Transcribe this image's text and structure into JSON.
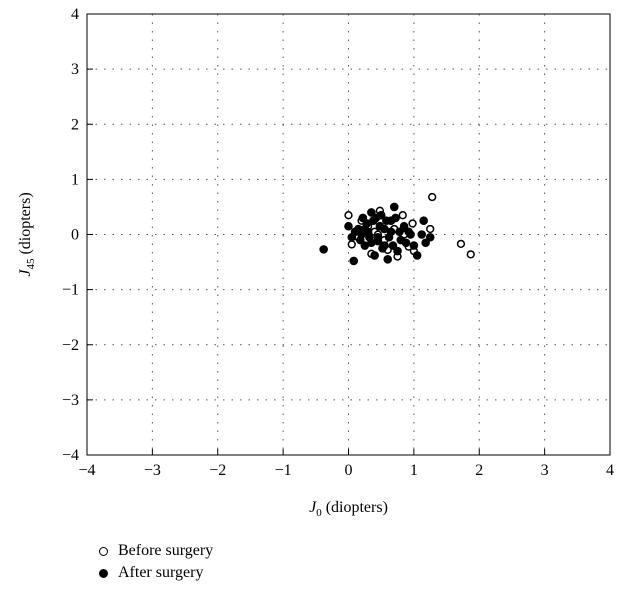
{
  "chart_data": {
    "type": "scatter",
    "title": "",
    "xlabel": {
      "main": "J",
      "sub": "0",
      "rest": " (diopters)"
    },
    "ylabel": {
      "main": "J",
      "sub": "45",
      "rest": " (diopters)"
    },
    "xlim": [
      -4,
      4
    ],
    "ylim": [
      -4,
      4
    ],
    "xticks": [
      "−4",
      "−3",
      "−2",
      "−1",
      "0",
      "1",
      "2",
      "3",
      "4"
    ],
    "yticks": [
      "−4",
      "−3",
      "−2",
      "−1",
      "0",
      "1",
      "2",
      "3",
      "4"
    ],
    "grid": true,
    "legend_position": "bottom-left",
    "series": [
      {
        "name": "Before surgery",
        "marker": "hollow-circle",
        "color": "#000000",
        "points": [
          [
            1.28,
            0.68
          ],
          [
            1.25,
            0.1
          ],
          [
            0.98,
            0.2
          ],
          [
            0.83,
            0.35
          ],
          [
            0.48,
            0.43
          ],
          [
            0.0,
            0.35
          ],
          [
            0.05,
            -0.18
          ],
          [
            0.15,
            -0.05
          ],
          [
            0.3,
            0.15
          ],
          [
            0.4,
            0.05
          ],
          [
            0.55,
            -0.1
          ],
          [
            0.6,
            -0.28
          ],
          [
            0.75,
            -0.4
          ],
          [
            0.92,
            -0.22
          ],
          [
            1.0,
            -0.3
          ],
          [
            0.35,
            -0.35
          ],
          [
            0.2,
            0.25
          ],
          [
            0.45,
            0.0
          ],
          [
            0.7,
            0.1
          ],
          [
            0.85,
            0.0
          ],
          [
            1.72,
            -0.17
          ],
          [
            1.87,
            -0.36
          ]
        ]
      },
      {
        "name": "After surgery",
        "marker": "filled-circle",
        "color": "#000000",
        "points": [
          [
            -0.38,
            -0.27
          ],
          [
            0.08,
            -0.48
          ],
          [
            0.0,
            0.15
          ],
          [
            0.05,
            -0.05
          ],
          [
            0.1,
            0.05
          ],
          [
            0.15,
            0.1
          ],
          [
            0.18,
            -0.1
          ],
          [
            0.2,
            0.0
          ],
          [
            0.22,
            0.3
          ],
          [
            0.25,
            -0.2
          ],
          [
            0.28,
            0.2
          ],
          [
            0.3,
            0.05
          ],
          [
            0.32,
            -0.05
          ],
          [
            0.35,
            0.4
          ],
          [
            0.38,
            0.25
          ],
          [
            0.4,
            -0.38
          ],
          [
            0.42,
            0.3
          ],
          [
            0.45,
            -0.12
          ],
          [
            0.48,
            0.15
          ],
          [
            0.5,
            0.35
          ],
          [
            0.52,
            -0.25
          ],
          [
            0.55,
            0.1
          ],
          [
            0.58,
            0.25
          ],
          [
            0.6,
            -0.45
          ],
          [
            0.62,
            -0.05
          ],
          [
            0.65,
            0.05
          ],
          [
            0.68,
            -0.2
          ],
          [
            0.7,
            0.5
          ],
          [
            0.72,
            0.3
          ],
          [
            0.75,
            -0.3
          ],
          [
            0.78,
            0.05
          ],
          [
            0.8,
            -0.1
          ],
          [
            0.85,
            0.15
          ],
          [
            0.88,
            -0.15
          ],
          [
            0.92,
            0.05
          ],
          [
            0.95,
            0.0
          ],
          [
            1.0,
            -0.2
          ],
          [
            1.05,
            -0.38
          ],
          [
            1.12,
            0.0
          ],
          [
            1.15,
            0.25
          ],
          [
            1.18,
            -0.15
          ],
          [
            1.25,
            -0.05
          ],
          [
            0.45,
            -0.05
          ],
          [
            0.55,
            -0.2
          ],
          [
            0.35,
            -0.15
          ],
          [
            0.25,
            0.1
          ],
          [
            0.65,
            0.25
          ]
        ]
      }
    ]
  }
}
